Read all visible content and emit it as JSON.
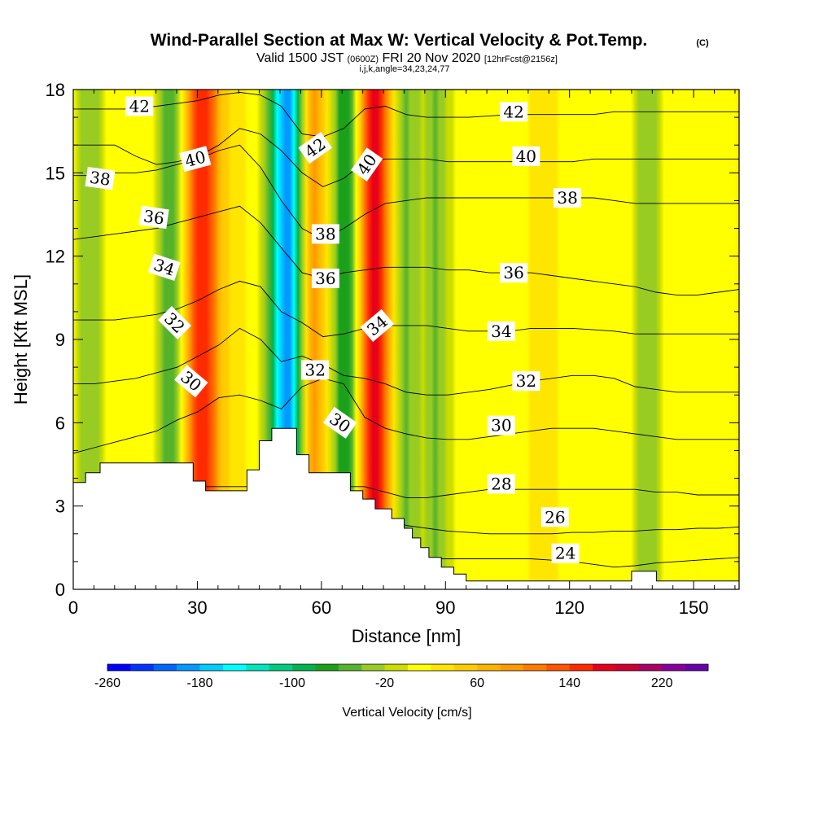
{
  "header": {
    "title": "Wind-Parallel Section at Max W: Vertical Velocity & Pot.Temp.",
    "copyright": "(C)",
    "valid_prefix": "Valid 1500 JST",
    "valid_utc": "(0600Z)",
    "valid_date": "FRI 20 Nov 2020",
    "forecast": "[12hrFcst@2156z]",
    "indices": "i,j,k,angle=34,23,24,77"
  },
  "chart_data": {
    "type": "heatmap",
    "xlabel": "Distance [nm]",
    "ylabel": "Height [Kft MSL]",
    "xlim": [
      0,
      161
    ],
    "ylim": [
      0,
      18
    ],
    "xticks": [
      0,
      30,
      60,
      90,
      120,
      150
    ],
    "yticks": [
      0,
      3,
      6,
      9,
      12,
      15,
      18
    ],
    "field": "Vertical Velocity [cm/s]",
    "overlay": "Potential Temperature contours",
    "colorbar": {
      "title": "Vertical Velocity [cm/s]",
      "labels": [
        -260,
        -180,
        -100,
        -20,
        60,
        140,
        220
      ],
      "bounds": [
        -260,
        260
      ],
      "colors": [
        "#0000ff",
        "#0033ff",
        "#0066ff",
        "#0099ff",
        "#00ccff",
        "#00ffff",
        "#00e6bf",
        "#00cc80",
        "#00b34d",
        "#1aa01a",
        "#55b32b",
        "#99cc22",
        "#ccdd00",
        "#ffff00",
        "#ffe600",
        "#ffcc00",
        "#ffb300",
        "#ff9900",
        "#ff7a00",
        "#ff5500",
        "#ff2b00",
        "#e6001a",
        "#cc0033",
        "#aa0066",
        "#880099",
        "#6600aa"
      ]
    },
    "wfeatures": [
      {
        "x": 52,
        "w": -210
      },
      {
        "x": 45,
        "w": 20
      },
      {
        "x": 57,
        "w": 130
      },
      {
        "x": 73,
        "w": 170
      },
      {
        "x": 31,
        "w": 160
      },
      {
        "x": 24,
        "w": -70
      },
      {
        "x": 66,
        "w": -90
      },
      {
        "x": 80,
        "w": -50
      },
      {
        "x": 88,
        "w": -40
      },
      {
        "x": 139,
        "w": -40
      },
      {
        "x": 4,
        "w": -40
      }
    ],
    "theta_contours": [
      {
        "label": "24",
        "y": [
          1.1,
          1.1,
          1.1,
          1.1,
          1.1,
          1.1,
          1.1,
          1.1,
          1.1,
          1.1,
          1.1,
          1.1,
          1.1,
          1.1,
          1.1,
          1.1,
          1.1,
          1.1,
          1.1,
          1.1,
          1.1,
          1.1,
          1.1,
          1.05,
          1.0,
          0.9,
          0.8,
          0.85,
          0.95,
          1.0,
          1.05,
          1.1,
          1.15
        ]
      },
      {
        "label": "26",
        "y": [
          2.6,
          2.6,
          2.6,
          2.6,
          2.6,
          2.6,
          2.6,
          2.6,
          2.6,
          2.6,
          2.6,
          2.6,
          2.6,
          2.6,
          2.6,
          2.6,
          2.3,
          2.2,
          2.1,
          2.05,
          2.0,
          2.0,
          2.0,
          2.0,
          2.05,
          2.05,
          2.1,
          2.1,
          2.15,
          2.15,
          2.2,
          2.2,
          2.25
        ]
      },
      {
        "label": "28",
        "y": [
          3.7,
          3.7,
          3.7,
          3.7,
          3.7,
          3.7,
          3.7,
          3.7,
          3.7,
          3.7,
          3.7,
          3.7,
          3.7,
          3.7,
          3.7,
          3.5,
          3.3,
          3.3,
          3.4,
          3.5,
          3.6,
          3.6,
          3.6,
          3.6,
          3.6,
          3.6,
          3.6,
          3.6,
          3.5,
          3.5,
          3.4,
          3.4,
          3.4
        ]
      },
      {
        "label": "30",
        "y": [
          4.9,
          5.1,
          5.3,
          5.5,
          5.7,
          6.1,
          6.4,
          6.9,
          7.0,
          6.8,
          6.5,
          7.3,
          7.6,
          7.4,
          6.2,
          5.8,
          5.6,
          5.45,
          5.4,
          5.4,
          5.5,
          5.6,
          5.7,
          5.8,
          5.8,
          5.8,
          5.7,
          5.6,
          5.5,
          5.4,
          5.4,
          5.4,
          5.4
        ]
      },
      {
        "label": "32",
        "y": [
          7.4,
          7.4,
          7.5,
          7.6,
          7.8,
          8.0,
          8.4,
          8.8,
          9.4,
          9.0,
          8.2,
          8.4,
          8.1,
          7.7,
          7.6,
          7.4,
          7.1,
          7.0,
          7.0,
          7.1,
          7.2,
          7.35,
          7.5,
          7.6,
          7.7,
          7.7,
          7.6,
          7.3,
          7.2,
          7.1,
          7.1,
          7.1,
          7.1
        ]
      },
      {
        "label": "34",
        "y": [
          9.7,
          9.7,
          9.7,
          9.8,
          9.9,
          10.1,
          10.4,
          10.8,
          11.1,
          10.9,
          10.0,
          9.6,
          9.1,
          9.2,
          9.4,
          9.5,
          9.5,
          9.5,
          9.4,
          9.3,
          9.3,
          9.3,
          9.4,
          9.4,
          9.4,
          9.35,
          9.3,
          9.2,
          9.2,
          9.2,
          9.2,
          9.2,
          9.2
        ]
      },
      {
        "label": "36",
        "y": [
          12.6,
          12.7,
          12.8,
          12.9,
          13.0,
          13.2,
          13.4,
          13.6,
          13.8,
          13.2,
          12.3,
          11.4,
          11.2,
          11.4,
          11.5,
          11.6,
          11.6,
          11.6,
          11.5,
          11.5,
          11.4,
          11.4,
          11.4,
          11.3,
          11.2,
          11.1,
          11.0,
          10.9,
          10.7,
          10.6,
          10.6,
          10.7,
          10.8
        ]
      },
      {
        "label": "38",
        "y": [
          14.9,
          14.9,
          15.0,
          15.0,
          15.1,
          15.3,
          15.5,
          15.8,
          16.0,
          15.2,
          14.0,
          13.0,
          12.6,
          13.0,
          13.5,
          13.9,
          14.0,
          14.1,
          14.1,
          14.1,
          14.1,
          14.1,
          14.1,
          14.1,
          14.1,
          14.1,
          14.0,
          13.9,
          13.9,
          13.9,
          13.9,
          13.9,
          13.9
        ]
      },
      {
        "label": "40",
        "y": [
          16.0,
          16.0,
          16.0,
          15.6,
          15.3,
          15.4,
          15.6,
          16.0,
          16.6,
          16.4,
          15.8,
          15.0,
          14.5,
          14.8,
          15.4,
          15.5,
          15.5,
          15.5,
          15.4,
          15.4,
          15.4,
          15.4,
          15.4,
          15.4,
          15.4,
          15.5,
          15.5,
          15.5,
          15.5,
          15.5,
          15.5,
          15.5,
          15.5
        ]
      },
      {
        "label": "42",
        "y": [
          17.3,
          17.3,
          17.3,
          17.3,
          17.4,
          17.5,
          17.6,
          17.8,
          17.9,
          17.8,
          17.4,
          16.4,
          16.3,
          16.6,
          17.3,
          17.4,
          17.1,
          17.0,
          17.0,
          17.0,
          17.05,
          17.1,
          17.1,
          17.1,
          17.1,
          17.1,
          17.2,
          17.2,
          17.2,
          17.2,
          17.2,
          17.2,
          17.2
        ]
      }
    ],
    "contour_labels": [
      {
        "text": "42",
        "x": 16,
        "y": 17.4,
        "angle": 0
      },
      {
        "text": "38",
        "x": 6.5,
        "y": 14.8,
        "angle": 8
      },
      {
        "text": "40",
        "x": 29.5,
        "y": 15.5,
        "angle": -15
      },
      {
        "text": "36",
        "x": 19.5,
        "y": 13.4,
        "angle": 8
      },
      {
        "text": "34",
        "x": 22,
        "y": 11.6,
        "angle": 18
      },
      {
        "text": "32",
        "x": 24.5,
        "y": 9.6,
        "angle": 45
      },
      {
        "text": "30",
        "x": 28.5,
        "y": 7.5,
        "angle": 40
      },
      {
        "text": "42",
        "x": 58.5,
        "y": 15.9,
        "angle": -35
      },
      {
        "text": "40",
        "x": 71,
        "y": 15.3,
        "angle": -55
      },
      {
        "text": "38",
        "x": 61,
        "y": 12.8,
        "angle": 0
      },
      {
        "text": "36",
        "x": 61,
        "y": 11.2,
        "angle": 0
      },
      {
        "text": "34",
        "x": 73.5,
        "y": 9.5,
        "angle": -40
      },
      {
        "text": "32",
        "x": 58.5,
        "y": 7.9,
        "angle": 0
      },
      {
        "text": "30",
        "x": 64.5,
        "y": 6.0,
        "angle": 35
      },
      {
        "text": "42",
        "x": 106.5,
        "y": 17.2,
        "angle": 0
      },
      {
        "text": "40",
        "x": 109.5,
        "y": 15.6,
        "angle": 0
      },
      {
        "text": "38",
        "x": 119.5,
        "y": 14.1,
        "angle": 0
      },
      {
        "text": "36",
        "x": 106.5,
        "y": 11.4,
        "angle": 0
      },
      {
        "text": "34",
        "x": 103.5,
        "y": 9.3,
        "angle": 0
      },
      {
        "text": "32",
        "x": 109.5,
        "y": 7.5,
        "angle": 0
      },
      {
        "text": "30",
        "x": 103.5,
        "y": 5.9,
        "angle": 0
      },
      {
        "text": "28",
        "x": 103.5,
        "y": 3.8,
        "angle": 0
      },
      {
        "text": "26",
        "x": 116.5,
        "y": 2.6,
        "angle": 0
      },
      {
        "text": "24",
        "x": 119,
        "y": 1.3,
        "angle": 0
      }
    ],
    "terrain": [
      [
        0,
        3.85
      ],
      [
        3,
        3.85
      ],
      [
        3,
        4.2
      ],
      [
        6.5,
        4.2
      ],
      [
        6.5,
        4.55
      ],
      [
        29,
        4.55
      ],
      [
        29,
        3.9
      ],
      [
        32,
        3.9
      ],
      [
        32,
        3.55
      ],
      [
        42,
        3.55
      ],
      [
        42,
        4.3
      ],
      [
        45,
        4.3
      ],
      [
        45,
        5.35
      ],
      [
        48,
        5.35
      ],
      [
        48,
        5.8
      ],
      [
        54,
        5.8
      ],
      [
        54,
        4.85
      ],
      [
        57,
        4.85
      ],
      [
        57,
        4.2
      ],
      [
        67,
        4.2
      ],
      [
        67,
        3.55
      ],
      [
        70,
        3.55
      ],
      [
        70,
        3.25
      ],
      [
        73,
        3.25
      ],
      [
        73,
        2.9
      ],
      [
        77,
        2.9
      ],
      [
        77,
        2.55
      ],
      [
        80,
        2.55
      ],
      [
        80,
        2.2
      ],
      [
        82,
        2.2
      ],
      [
        82,
        1.85
      ],
      [
        84,
        1.85
      ],
      [
        84,
        1.5
      ],
      [
        86,
        1.5
      ],
      [
        86,
        1.15
      ],
      [
        89,
        1.15
      ],
      [
        89,
        0.8
      ],
      [
        92,
        0.8
      ],
      [
        92,
        0.55
      ],
      [
        95,
        0.55
      ],
      [
        95,
        0.3
      ],
      [
        135,
        0.3
      ],
      [
        135,
        0.65
      ],
      [
        141,
        0.65
      ],
      [
        141,
        0.3
      ],
      [
        161,
        0.3
      ]
    ]
  }
}
